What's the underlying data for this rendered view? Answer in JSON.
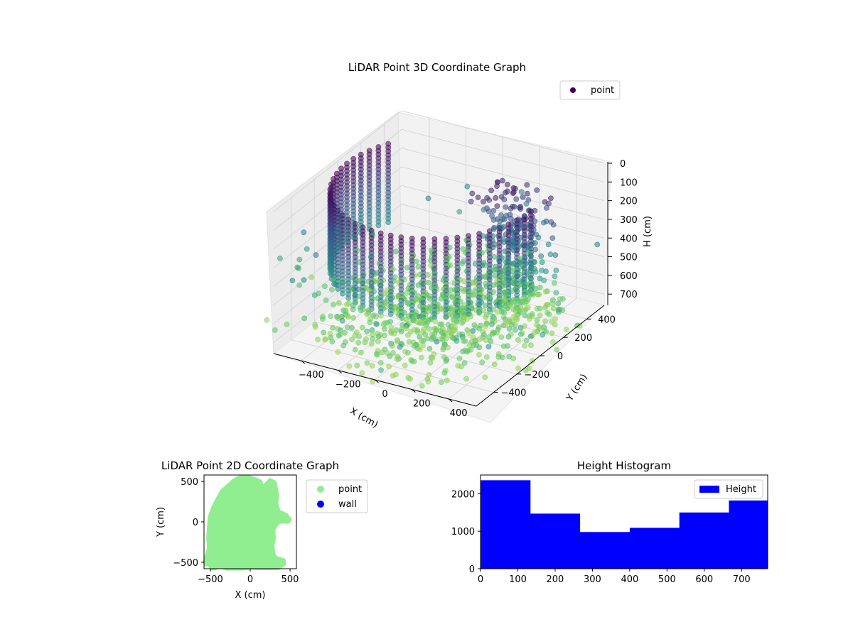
{
  "chart_data": [
    {
      "type": "scatter3d",
      "title": "LiDAR Point 3D Coordinate Graph",
      "xlabel": "X (cm)",
      "ylabel": "Y (cm)",
      "zlabel": "H (cm)",
      "xlim": [
        -550,
        550
      ],
      "ylim": [
        -550,
        550
      ],
      "zlim": [
        0,
        760
      ],
      "z_inverted": true,
      "x_ticks": [
        "−400",
        "−200",
        "0",
        "200",
        "400"
      ],
      "y_ticks": [
        "−400",
        "−200",
        "0",
        "200",
        "400"
      ],
      "z_ticks": [
        "0",
        "100",
        "200",
        "300",
        "400",
        "500",
        "600",
        "700"
      ],
      "legend": [
        "point"
      ],
      "legend_position": "top-right",
      "colormap": "viridis",
      "grid": true,
      "structure": {
        "wall_radius": 500,
        "wall_arc_deg": [
          150,
          360
        ],
        "wall_height": [
          0,
          430
        ],
        "floor_ray_radius": [
          80,
          600
        ],
        "tree_center": [
          250,
          250
        ],
        "tree_height": [
          60,
          760
        ]
      }
    },
    {
      "type": "scatter",
      "title": "LiDAR Point 2D Coordinate Graph",
      "xlabel": "X (cm)",
      "ylabel": "Y (cm)",
      "xlim": [
        -580,
        580
      ],
      "ylim": [
        -580,
        580
      ],
      "x_ticks": [
        "−500",
        "0",
        "500"
      ],
      "y_ticks": [
        "−500",
        "0",
        "500"
      ],
      "series": [
        {
          "name": "point",
          "color": "#90ee90"
        },
        {
          "name": "wall",
          "color": "#0000ff"
        }
      ],
      "legend_position": "outside-right",
      "outline": [
        [
          -560,
          -530
        ],
        [
          -520,
          -530
        ],
        [
          -480,
          -580
        ],
        [
          -440,
          -580
        ],
        [
          -420,
          -550
        ],
        [
          -350,
          -560
        ],
        [
          -300,
          -580
        ],
        [
          -200,
          -580
        ],
        [
          -100,
          -580
        ],
        [
          0,
          -570
        ],
        [
          100,
          -575
        ],
        [
          200,
          -575
        ],
        [
          350,
          -575
        ],
        [
          430,
          -520
        ],
        [
          420,
          -470
        ],
        [
          340,
          -450
        ],
        [
          300,
          -420
        ],
        [
          280,
          -300
        ],
        [
          300,
          -200
        ],
        [
          290,
          -100
        ],
        [
          340,
          -20
        ],
        [
          380,
          0
        ],
        [
          480,
          0
        ],
        [
          500,
          30
        ],
        [
          450,
          90
        ],
        [
          360,
          130
        ],
        [
          330,
          220
        ],
        [
          340,
          330
        ],
        [
          320,
          440
        ],
        [
          310,
          490
        ],
        [
          250,
          520
        ],
        [
          200,
          470
        ],
        [
          150,
          420
        ],
        [
          130,
          500
        ],
        [
          60,
          530
        ],
        [
          -20,
          560
        ],
        [
          -120,
          560
        ],
        [
          -200,
          520
        ],
        [
          -290,
          440
        ],
        [
          -360,
          380
        ],
        [
          -420,
          270
        ],
        [
          -470,
          170
        ],
        [
          -510,
          60
        ],
        [
          -520,
          -60
        ],
        [
          -530,
          -200
        ],
        [
          -520,
          -330
        ],
        [
          -550,
          -420
        ],
        [
          -570,
          -490
        ]
      ]
    },
    {
      "type": "bar",
      "title": "Height Histogram",
      "xlabel": "",
      "ylabel": "",
      "xlim": [
        0,
        770
      ],
      "ylim": [
        0,
        2500
      ],
      "x_ticks": [
        "0",
        "100",
        "200",
        "300",
        "400",
        "500",
        "600",
        "700"
      ],
      "y_ticks": [
        "0",
        "1000",
        "2000"
      ],
      "series": [
        {
          "name": "Height",
          "color": "#0000ff"
        }
      ],
      "bins": [
        {
          "x0": 0,
          "x1": 133,
          "count": 2360
        },
        {
          "x0": 133,
          "x1": 266,
          "count": 1470
        },
        {
          "x0": 266,
          "x1": 400,
          "count": 980
        },
        {
          "x0": 400,
          "x1": 533,
          "count": 1090
        },
        {
          "x0": 533,
          "x1": 666,
          "count": 1500
        },
        {
          "x0": 666,
          "x1": 770,
          "count": 1820
        }
      ],
      "legend_position": "top-right"
    }
  ]
}
